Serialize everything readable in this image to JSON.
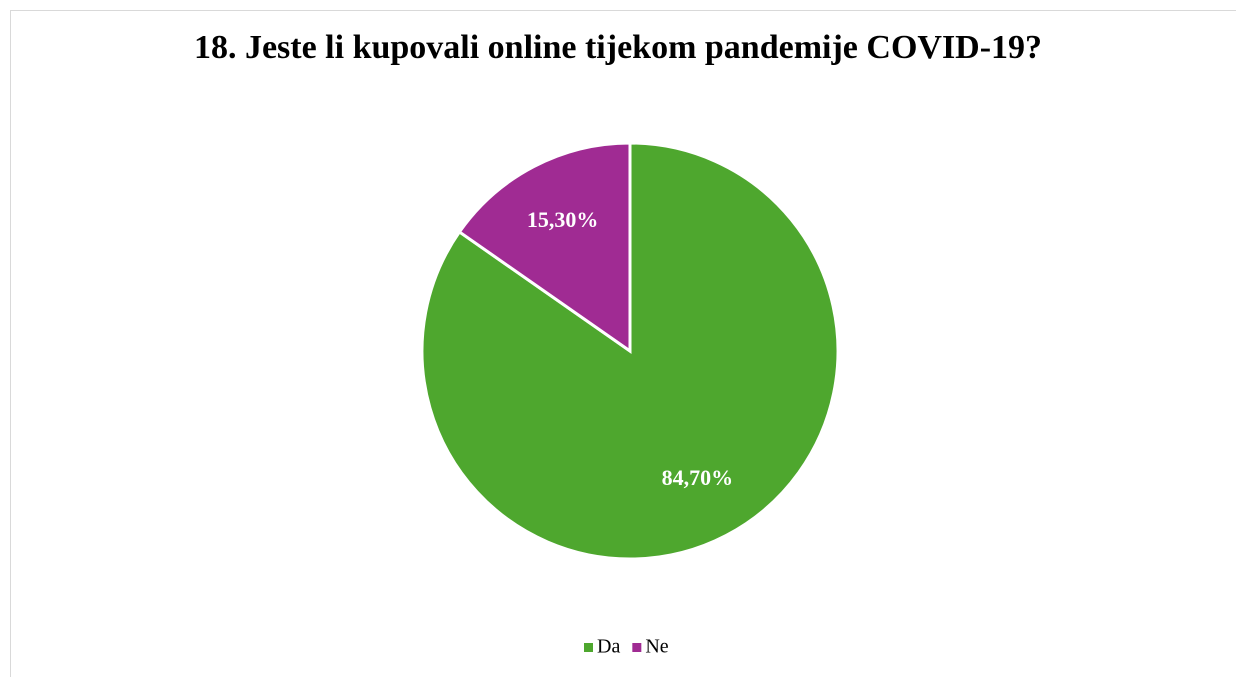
{
  "chart_data": {
    "type": "pie",
    "title": "18. Jeste li kupovali online tijekom pandemije COVID-19?",
    "categories": [
      "Da",
      "Ne"
    ],
    "values": [
      84.7,
      15.3
    ],
    "value_labels": [
      "84,70%",
      "15,30%"
    ],
    "colors": [
      "#4ea72e",
      "#a02b93"
    ],
    "legend": "bottom"
  }
}
